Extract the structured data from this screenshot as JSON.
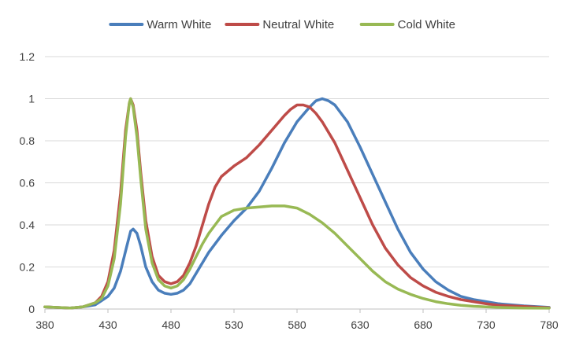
{
  "chart_data": {
    "type": "line",
    "title": "",
    "xlabel": "",
    "ylabel": "",
    "xlim": [
      380,
      780
    ],
    "ylim": [
      0,
      1.2
    ],
    "x_ticks": [
      "380",
      "430",
      "480",
      "530",
      "580",
      "630",
      "680",
      "730",
      "780"
    ],
    "y_ticks": [
      "0",
      "0.2",
      "0.4",
      "0.6",
      "0.8",
      "1",
      "1.2"
    ],
    "grid": "horizontal",
    "legend_position": "top",
    "series": [
      {
        "name": "Warm White",
        "color": "#4a7ebb",
        "points": [
          [
            380,
            0.01
          ],
          [
            400,
            0.005
          ],
          [
            410,
            0.01
          ],
          [
            420,
            0.02
          ],
          [
            430,
            0.06
          ],
          [
            435,
            0.1
          ],
          [
            440,
            0.18
          ],
          [
            445,
            0.3
          ],
          [
            448,
            0.37
          ],
          [
            450,
            0.38
          ],
          [
            453,
            0.36
          ],
          [
            456,
            0.3
          ],
          [
            460,
            0.2
          ],
          [
            465,
            0.13
          ],
          [
            470,
            0.09
          ],
          [
            475,
            0.075
          ],
          [
            480,
            0.07
          ],
          [
            485,
            0.075
          ],
          [
            490,
            0.09
          ],
          [
            495,
            0.12
          ],
          [
            500,
            0.17
          ],
          [
            505,
            0.22
          ],
          [
            510,
            0.27
          ],
          [
            520,
            0.35
          ],
          [
            530,
            0.42
          ],
          [
            540,
            0.48
          ],
          [
            550,
            0.56
          ],
          [
            560,
            0.67
          ],
          [
            570,
            0.79
          ],
          [
            580,
            0.89
          ],
          [
            590,
            0.96
          ],
          [
            595,
            0.99
          ],
          [
            600,
            1.0
          ],
          [
            605,
            0.99
          ],
          [
            610,
            0.97
          ],
          [
            620,
            0.89
          ],
          [
            630,
            0.77
          ],
          [
            640,
            0.64
          ],
          [
            650,
            0.51
          ],
          [
            660,
            0.38
          ],
          [
            670,
            0.27
          ],
          [
            680,
            0.19
          ],
          [
            690,
            0.13
          ],
          [
            700,
            0.09
          ],
          [
            710,
            0.06
          ],
          [
            720,
            0.045
          ],
          [
            730,
            0.035
          ],
          [
            740,
            0.025
          ],
          [
            760,
            0.015
          ],
          [
            780,
            0.008
          ]
        ]
      },
      {
        "name": "Neutral White",
        "color": "#be4b48",
        "points": [
          [
            380,
            0.01
          ],
          [
            400,
            0.005
          ],
          [
            410,
            0.01
          ],
          [
            420,
            0.03
          ],
          [
            425,
            0.06
          ],
          [
            430,
            0.13
          ],
          [
            435,
            0.28
          ],
          [
            440,
            0.55
          ],
          [
            444,
            0.85
          ],
          [
            447,
            0.98
          ],
          [
            448,
            1.0
          ],
          [
            450,
            0.97
          ],
          [
            453,
            0.85
          ],
          [
            456,
            0.65
          ],
          [
            460,
            0.42
          ],
          [
            465,
            0.25
          ],
          [
            470,
            0.16
          ],
          [
            475,
            0.13
          ],
          [
            480,
            0.12
          ],
          [
            485,
            0.13
          ],
          [
            490,
            0.16
          ],
          [
            495,
            0.22
          ],
          [
            500,
            0.3
          ],
          [
            505,
            0.4
          ],
          [
            510,
            0.5
          ],
          [
            515,
            0.58
          ],
          [
            520,
            0.63
          ],
          [
            530,
            0.68
          ],
          [
            540,
            0.72
          ],
          [
            550,
            0.78
          ],
          [
            560,
            0.85
          ],
          [
            570,
            0.92
          ],
          [
            575,
            0.95
          ],
          [
            580,
            0.97
          ],
          [
            585,
            0.97
          ],
          [
            590,
            0.96
          ],
          [
            595,
            0.93
          ],
          [
            600,
            0.89
          ],
          [
            610,
            0.79
          ],
          [
            620,
            0.66
          ],
          [
            630,
            0.53
          ],
          [
            640,
            0.4
          ],
          [
            650,
            0.29
          ],
          [
            660,
            0.21
          ],
          [
            670,
            0.15
          ],
          [
            680,
            0.11
          ],
          [
            690,
            0.08
          ],
          [
            700,
            0.06
          ],
          [
            710,
            0.045
          ],
          [
            720,
            0.035
          ],
          [
            730,
            0.025
          ],
          [
            740,
            0.018
          ],
          [
            760,
            0.012
          ],
          [
            780,
            0.006
          ]
        ]
      },
      {
        "name": "Cold White",
        "color": "#98b954",
        "points": [
          [
            380,
            0.01
          ],
          [
            400,
            0.005
          ],
          [
            410,
            0.01
          ],
          [
            420,
            0.03
          ],
          [
            425,
            0.05
          ],
          [
            430,
            0.11
          ],
          [
            435,
            0.24
          ],
          [
            440,
            0.5
          ],
          [
            444,
            0.82
          ],
          [
            447,
            0.98
          ],
          [
            448,
            1.0
          ],
          [
            450,
            0.96
          ],
          [
            453,
            0.82
          ],
          [
            456,
            0.62
          ],
          [
            460,
            0.38
          ],
          [
            465,
            0.22
          ],
          [
            470,
            0.14
          ],
          [
            475,
            0.11
          ],
          [
            480,
            0.1
          ],
          [
            485,
            0.11
          ],
          [
            490,
            0.14
          ],
          [
            495,
            0.19
          ],
          [
            500,
            0.25
          ],
          [
            505,
            0.31
          ],
          [
            510,
            0.36
          ],
          [
            515,
            0.4
          ],
          [
            520,
            0.44
          ],
          [
            530,
            0.47
          ],
          [
            540,
            0.48
          ],
          [
            550,
            0.485
          ],
          [
            560,
            0.49
          ],
          [
            570,
            0.49
          ],
          [
            580,
            0.48
          ],
          [
            590,
            0.45
          ],
          [
            600,
            0.41
          ],
          [
            610,
            0.36
          ],
          [
            620,
            0.3
          ],
          [
            630,
            0.24
          ],
          [
            640,
            0.18
          ],
          [
            650,
            0.13
          ],
          [
            660,
            0.095
          ],
          [
            670,
            0.07
          ],
          [
            680,
            0.05
          ],
          [
            690,
            0.035
          ],
          [
            700,
            0.025
          ],
          [
            710,
            0.018
          ],
          [
            720,
            0.013
          ],
          [
            730,
            0.01
          ],
          [
            740,
            0.008
          ],
          [
            760,
            0.005
          ],
          [
            780,
            0.004
          ]
        ]
      }
    ]
  }
}
